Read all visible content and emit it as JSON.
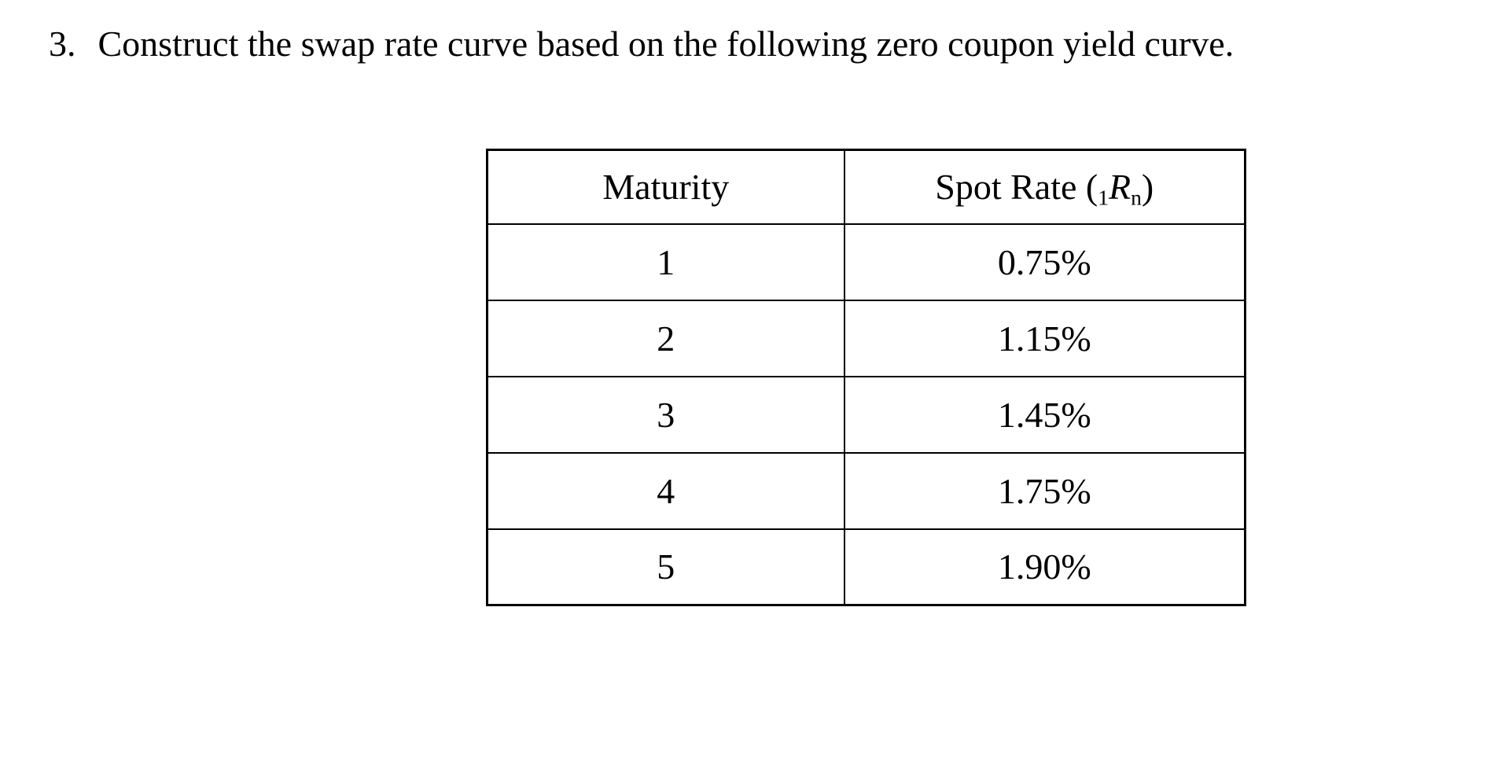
{
  "page": {
    "background_color": "#ffffff",
    "text_color": "#000000"
  },
  "problem": {
    "number": "3.",
    "statement": "Construct the swap rate curve based on the following zero coupon yield curve."
  },
  "table": {
    "maturity_header": "Maturity",
    "spot_rate_header": {
      "prefix": "Spot Rate (",
      "pre_sub": "1",
      "symbol": "R",
      "post_sub": "n",
      "suffix": ")"
    },
    "rows": [
      {
        "maturity": "1",
        "spot_rate": "0.75%"
      },
      {
        "maturity": "2",
        "spot_rate": "1.15%"
      },
      {
        "maturity": "3",
        "spot_rate": "1.45%"
      },
      {
        "maturity": "4",
        "spot_rate": "1.75%"
      },
      {
        "maturity": "5",
        "spot_rate": "1.90%"
      }
    ]
  }
}
